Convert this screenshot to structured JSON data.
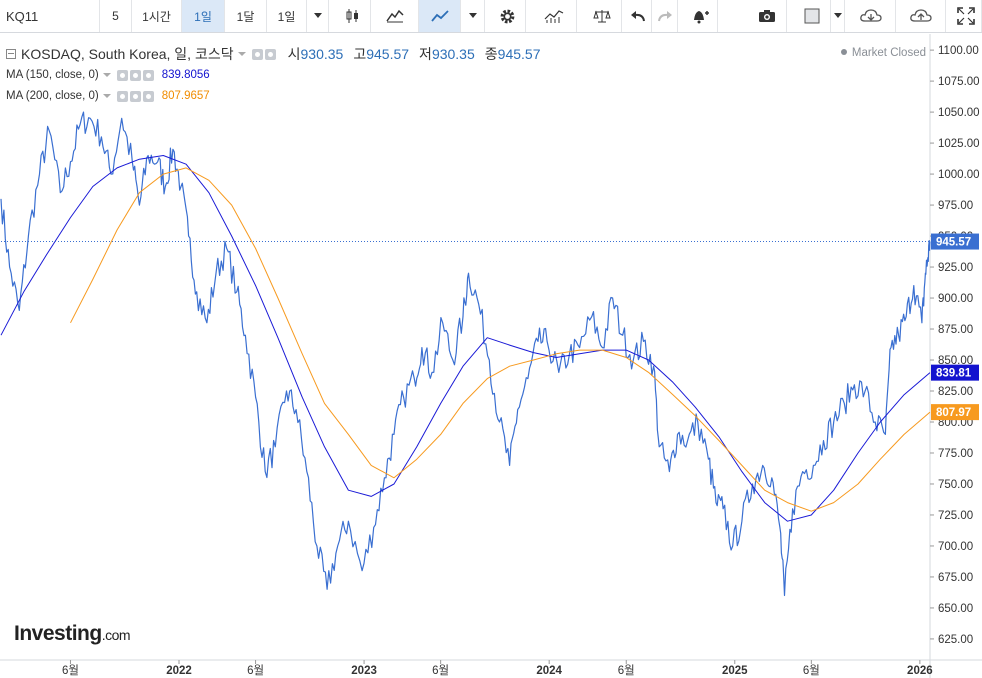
{
  "toolbar": {
    "symbol": "KQ11",
    "intervals": [
      "5",
      "1시간",
      "1일",
      "1달",
      "1일"
    ],
    "active_interval": 2,
    "icons": [
      "candle-icon",
      "mountain-icon",
      "line-icon",
      "chevron-down-icon",
      "gear-icon",
      "indicator-icon",
      "scale-icon",
      "undo-icon",
      "redo-icon",
      "alert-icon",
      "camera-icon",
      "color-box-icon",
      "chevron-down-icon",
      "cloud-download-icon",
      "cloud-upload-icon",
      "fullscreen-icon"
    ]
  },
  "legend": {
    "title": "KOSDAQ, South Korea, 일, 코스닥",
    "ohlc": [
      {
        "k": "시",
        "v": "930.35"
      },
      {
        "k": "고",
        "v": "945.57"
      },
      {
        "k": "저",
        "v": "930.35"
      },
      {
        "k": "종",
        "v": "945.57"
      }
    ],
    "ma150": {
      "label": "MA (150, close, 0)",
      "value": "839.8056"
    },
    "ma200": {
      "label": "MA (200, close, 0)",
      "value": "807.9657"
    },
    "market_status": "Market Closed"
  },
  "watermark": {
    "brand": "Investing",
    "suffix": ".com"
  },
  "colors": {
    "price": "#3a6fd1",
    "ma150": "#1a1ad6",
    "ma200": "#f79a1f",
    "last_price_label": "#3a6fd1",
    "ma150_label": "#1313cf",
    "ma200_label": "#f79a1f",
    "axis_text": "#333333",
    "grid_border": "#d6d9de"
  },
  "chart_data": {
    "type": "line",
    "y_ticks": [
      "1100.00",
      "1075.00",
      "1050.00",
      "1025.00",
      "1000.00",
      "975.00",
      "950.00",
      "925.00",
      "900.00",
      "875.00",
      "850.00",
      "825.00",
      "800.00",
      "775.00",
      "750.00",
      "725.00",
      "700.00",
      "675.00",
      "650.00",
      "625.00"
    ],
    "ylim": [
      608,
      1113
    ],
    "x_ticks": [
      {
        "label": "6월",
        "x": "2021-06"
      },
      {
        "label": "2022",
        "x": "2022-01"
      },
      {
        "label": "6월",
        "x": "2022-06"
      },
      {
        "label": "2023",
        "x": "2023-01"
      },
      {
        "label": "6월",
        "x": "2023-06"
      },
      {
        "label": "2024",
        "x": "2024-01"
      },
      {
        "label": "6월",
        "x": "2024-06"
      },
      {
        "label": "2025",
        "x": "2025-01"
      },
      {
        "label": "6월",
        "x": "2025-06"
      },
      {
        "label": "2026",
        "x": "2026-01"
      }
    ],
    "xlim": [
      "2021-01-15",
      "2026-01-21"
    ],
    "last_price": 945.57,
    "last_price_label": "945.57",
    "ma150_label": "839.81",
    "ma200_label": "807.97",
    "series": [
      {
        "name": "KOSDAQ",
        "x": [
          "2021-01-15",
          "2021-02-01",
          "2021-02-20",
          "2021-03-10",
          "2021-04-01",
          "2021-04-20",
          "2021-05-12",
          "2021-06-01",
          "2021-06-20",
          "2021-07-10",
          "2021-08-01",
          "2021-08-20",
          "2021-09-10",
          "2021-10-01",
          "2021-10-15",
          "2021-11-01",
          "2021-11-20",
          "2021-12-05",
          "2021-12-20",
          "2022-01-05",
          "2022-01-20",
          "2022-02-05",
          "2022-02-25",
          "2022-03-15",
          "2022-04-05",
          "2022-04-25",
          "2022-05-12",
          "2022-06-01",
          "2022-06-20",
          "2022-07-10",
          "2022-08-01",
          "2022-08-20",
          "2022-09-10",
          "2022-09-30",
          "2022-10-20",
          "2022-11-10",
          "2022-12-01",
          "2022-12-28",
          "2023-01-20",
          "2023-02-10",
          "2023-03-01",
          "2023-03-20",
          "2023-04-10",
          "2023-04-25",
          "2023-05-15",
          "2023-06-05",
          "2023-06-25",
          "2023-07-15",
          "2023-07-26",
          "2023-08-15",
          "2023-09-05",
          "2023-09-25",
          "2023-10-15",
          "2023-10-31",
          "2023-11-20",
          "2023-12-10",
          "2023-12-28",
          "2024-01-20",
          "2024-02-10",
          "2024-03-01",
          "2024-03-25",
          "2024-04-15",
          "2024-05-05",
          "2024-05-25",
          "2024-06-15",
          "2024-07-05",
          "2024-07-25",
          "2024-08-05",
          "2024-08-25",
          "2024-09-10",
          "2024-09-30",
          "2024-10-20",
          "2024-11-10",
          "2024-11-25",
          "2024-12-09",
          "2024-12-28",
          "2025-01-15",
          "2025-02-05",
          "2025-02-25",
          "2025-03-15",
          "2025-03-31",
          "2025-04-09",
          "2025-04-25",
          "2025-05-15",
          "2025-06-05",
          "2025-06-25",
          "2025-07-15",
          "2025-08-05",
          "2025-08-25",
          "2025-09-15",
          "2025-10-05",
          "2025-10-25",
          "2025-11-05",
          "2025-11-20",
          "2025-12-05",
          "2025-12-20",
          "2026-01-05",
          "2026-01-12",
          "2026-01-16",
          "2026-01-21"
        ],
        "values": [
          980,
          925,
          890,
          950,
          1000,
          1035,
          985,
          1010,
          1040,
          1045,
          1030,
          1000,
          1045,
          1010,
          975,
          1015,
          1010,
          990,
          1020,
          990,
          950,
          905,
          880,
          920,
          940,
          905,
          870,
          820,
          760,
          780,
          825,
          810,
          760,
          700,
          665,
          700,
          720,
          680,
          715,
          755,
          790,
          820,
          835,
          860,
          840,
          880,
          850,
          885,
          920,
          895,
          850,
          800,
          765,
          810,
          835,
          865,
          865,
          840,
          855,
          860,
          885,
          860,
          900,
          870,
          850,
          865,
          845,
          780,
          760,
          790,
          785,
          800,
          770,
          735,
          730,
          700,
          720,
          750,
          765,
          755,
          715,
          660,
          730,
          760,
          765,
          785,
          800,
          815,
          830,
          825,
          800,
          790,
          860,
          870,
          885,
          910,
          880,
          920,
          930,
          945.57
        ]
      },
      {
        "name": "MA (150, close, 0)",
        "x": [
          "2021-01-15",
          "2021-03-01",
          "2021-04-15",
          "2021-06-01",
          "2021-07-15",
          "2021-09-01",
          "2021-10-15",
          "2021-12-01",
          "2022-01-15",
          "2022-03-01",
          "2022-04-15",
          "2022-06-01",
          "2022-07-15",
          "2022-09-01",
          "2022-10-15",
          "2022-12-01",
          "2023-01-15",
          "2023-03-01",
          "2023-04-15",
          "2023-06-01",
          "2023-07-15",
          "2023-09-01",
          "2023-10-15",
          "2023-12-01",
          "2024-01-15",
          "2024-03-01",
          "2024-04-15",
          "2024-06-01",
          "2024-07-15",
          "2024-09-01",
          "2024-10-15",
          "2024-12-01",
          "2025-01-15",
          "2025-03-01",
          "2025-04-15",
          "2025-06-01",
          "2025-07-15",
          "2025-09-01",
          "2025-10-15",
          "2025-12-01",
          "2026-01-21"
        ],
        "values": [
          870,
          905,
          935,
          965,
          990,
          1005,
          1012,
          1015,
          1008,
          985,
          950,
          910,
          868,
          820,
          780,
          745,
          740,
          750,
          780,
          815,
          845,
          868,
          862,
          856,
          852,
          855,
          858,
          858,
          850,
          832,
          812,
          788,
          760,
          735,
          720,
          725,
          745,
          775,
          800,
          822,
          839.81
        ]
      },
      {
        "name": "MA (200, close, 0)",
        "x": [
          "2021-06-01",
          "2021-07-15",
          "2021-09-01",
          "2021-10-15",
          "2021-12-01",
          "2022-01-15",
          "2022-03-01",
          "2022-04-15",
          "2022-06-01",
          "2022-07-15",
          "2022-09-01",
          "2022-10-15",
          "2022-12-01",
          "2023-01-15",
          "2023-03-01",
          "2023-04-15",
          "2023-06-01",
          "2023-07-15",
          "2023-09-01",
          "2023-10-15",
          "2023-12-01",
          "2024-01-15",
          "2024-03-01",
          "2024-04-15",
          "2024-06-01",
          "2024-07-15",
          "2024-09-01",
          "2024-10-15",
          "2024-12-01",
          "2025-01-15",
          "2025-03-01",
          "2025-04-15",
          "2025-06-01",
          "2025-07-15",
          "2025-09-01",
          "2025-10-15",
          "2025-12-01",
          "2026-01-21"
        ],
        "values": [
          880,
          915,
          955,
          985,
          1000,
          1005,
          995,
          975,
          940,
          900,
          855,
          815,
          790,
          765,
          755,
          770,
          790,
          815,
          835,
          845,
          850,
          855,
          858,
          858,
          852,
          840,
          822,
          805,
          785,
          765,
          745,
          735,
          728,
          735,
          750,
          770,
          790,
          807.97
        ]
      }
    ]
  }
}
